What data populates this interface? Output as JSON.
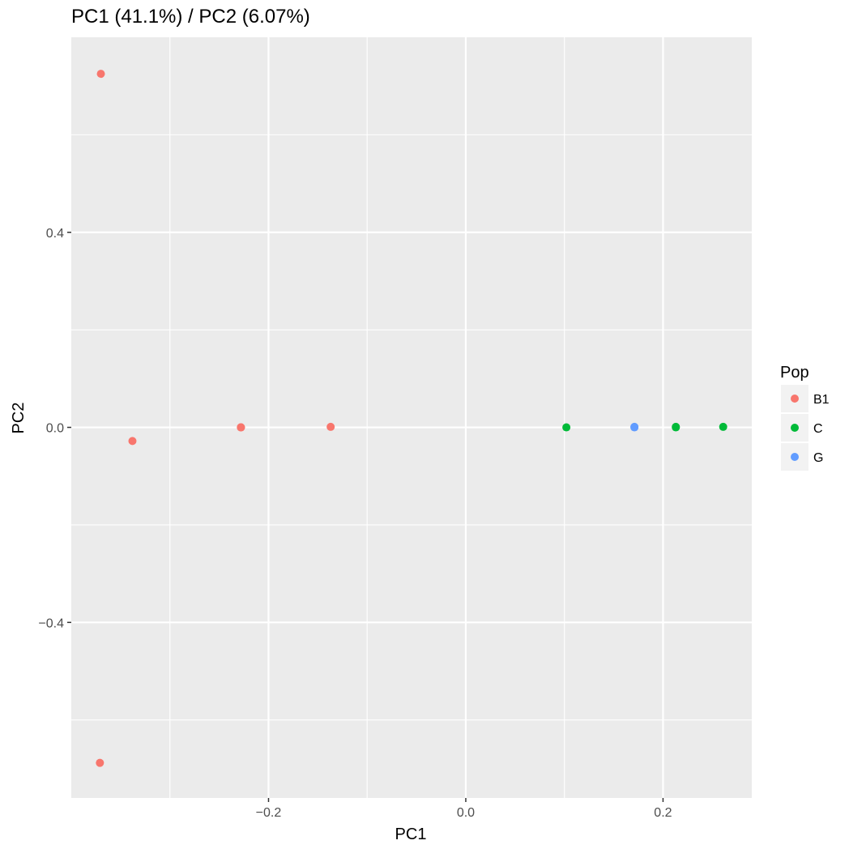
{
  "chart_data": {
    "type": "scatter",
    "title": "PC1 (41.1%) / PC2 (6.07%)",
    "xlabel": "PC1",
    "ylabel": "PC2",
    "xlim": [
      -0.4,
      0.29
    ],
    "ylim": [
      -0.76,
      0.8
    ],
    "x_ticks": [
      -0.2,
      0.0,
      0.2
    ],
    "x_tick_labels": [
      "−0.2",
      "0.0",
      "0.2"
    ],
    "y_ticks": [
      -0.4,
      0.0,
      0.4
    ],
    "y_tick_labels": [
      "−0.4",
      "0.0",
      "0.4"
    ],
    "grid": true,
    "legend_title": "Pop",
    "legend_position": "right",
    "series": [
      {
        "name": "B1",
        "color": "#F8766D",
        "points": [
          [
            -0.37,
            0.725
          ],
          [
            -0.338,
            -0.028
          ],
          [
            -0.228,
            0.0
          ],
          [
            -0.228,
            0.0
          ],
          [
            -0.228,
            0.0
          ],
          [
            -0.137,
            0.001
          ],
          [
            -0.371,
            -0.688
          ]
        ]
      },
      {
        "name": "C",
        "color": "#00BA38",
        "points": [
          [
            0.102,
            0.0
          ],
          [
            0.213,
            0.001
          ],
          [
            0.213,
            0.0
          ],
          [
            0.261,
            0.001
          ]
        ]
      },
      {
        "name": "G",
        "color": "#619CFF",
        "points": [
          [
            0.171,
            0.001
          ],
          [
            0.171,
            0.0
          ]
        ]
      }
    ]
  }
}
